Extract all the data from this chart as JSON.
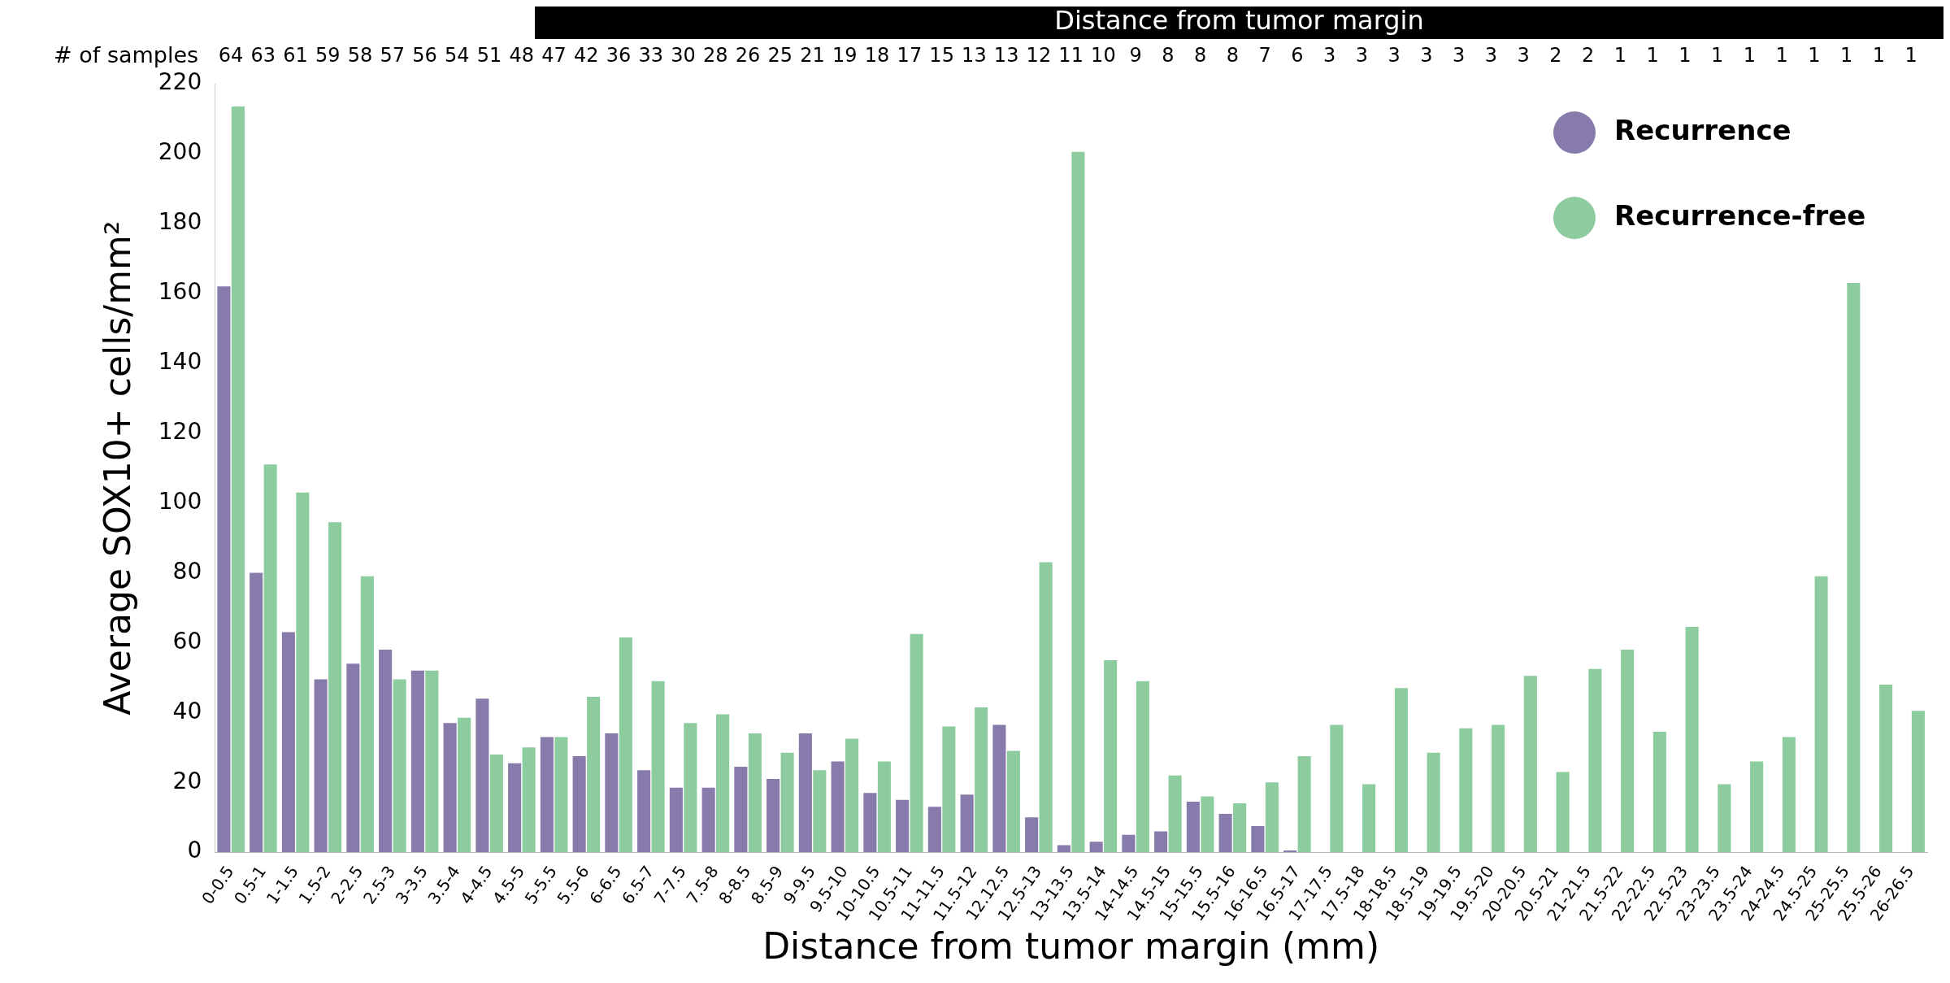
{
  "chart_data": {
    "type": "bar",
    "title": "Distance from tumor margin",
    "xlabel": "Distance from tumor margin (mm)",
    "ylabel": "Average SOX10+ cells/mm²",
    "categories": [
      "0-0.5",
      "0.5-1",
      "1-1.5",
      "1.5-2",
      "2-2.5",
      "2.5-3",
      "3-3.5",
      "3.5-4",
      "4-4.5",
      "4.5-5",
      "5-5.5",
      "5.5-6",
      "6-6.5",
      "6.5-7",
      "7-7.5",
      "7.5-8",
      "8-8.5",
      "8.5-9",
      "9-9.5",
      "9.5-10",
      "10-10.5",
      "10.5-11",
      "11-11.5",
      "11.5-12",
      "12.12.5",
      "12.5-13",
      "13-13.5",
      "13.5-14",
      "14-14.5",
      "14.5-15",
      "15-15.5",
      "15.5-16",
      "16-16.5",
      "16.5-17",
      "17-17.5",
      "17.5-18",
      "18-18.5",
      "18.5-19",
      "19-19.5",
      "19.5-20",
      "20-20.5",
      "20.5-21",
      "21-21.5",
      "21.5-22",
      "22-22.5",
      "22.5-23",
      "23-23.5",
      "23.5-24",
      "24-24.5",
      "24.5-25",
      "25-25.5",
      "25.5-26",
      "26-26.5"
    ],
    "series": [
      {
        "name": "Recurrence",
        "color": "#877bab",
        "values": [
          162,
          80,
          63,
          49.5,
          54,
          58,
          52,
          37,
          44,
          25.5,
          33,
          27.5,
          34,
          23.5,
          18.5,
          18.5,
          24.5,
          21,
          34,
          26,
          17,
          15,
          13,
          16.5,
          36.5,
          10,
          2,
          3,
          5,
          6,
          14.5,
          11,
          7.5,
          0.5,
          null,
          null,
          null,
          null,
          null,
          null,
          null,
          null,
          null,
          null,
          null,
          null,
          null,
          null,
          null,
          null,
          null,
          null,
          null
        ]
      },
      {
        "name": "Recurrence-free",
        "color": "#8ccc9f",
        "values": [
          213.5,
          111,
          103,
          94.5,
          79,
          49.5,
          52,
          38.5,
          28,
          30,
          33,
          44.5,
          61.5,
          49,
          37,
          39.5,
          34,
          28.5,
          23.5,
          32.5,
          26,
          62.5,
          36,
          41.5,
          29,
          83,
          200.5,
          55,
          49,
          22,
          16,
          14,
          20,
          27.5,
          36.5,
          19.5,
          47,
          28.5,
          35.5,
          36.5,
          50.5,
          23,
          52.5,
          58,
          34.5,
          64.5,
          19.5,
          26,
          33,
          79,
          163,
          48,
          40.5
        ]
      }
    ],
    "ylim": [
      0,
      220
    ],
    "yticks": [
      0,
      20,
      40,
      60,
      80,
      100,
      120,
      140,
      160,
      180,
      200,
      220
    ],
    "grid": false,
    "legend": "top right",
    "annotations": [
      "# of samples",
      "64",
      "63",
      "61",
      "59",
      "58",
      "57",
      "56",
      "54",
      "51",
      "48",
      "47",
      "42",
      "36",
      "33",
      "30",
      "28",
      "26",
      "25",
      "21",
      "19",
      "18",
      "17",
      "15",
      "13",
      "13",
      "12",
      "11",
      "10",
      "9",
      "8",
      "8",
      "8",
      "7",
      "6",
      "3",
      "3",
      "3",
      "3",
      "3",
      "3",
      "3",
      "2",
      "2",
      "1",
      "1",
      "1",
      "1",
      "1",
      "1",
      "1",
      "1",
      "1",
      "1"
    ]
  }
}
